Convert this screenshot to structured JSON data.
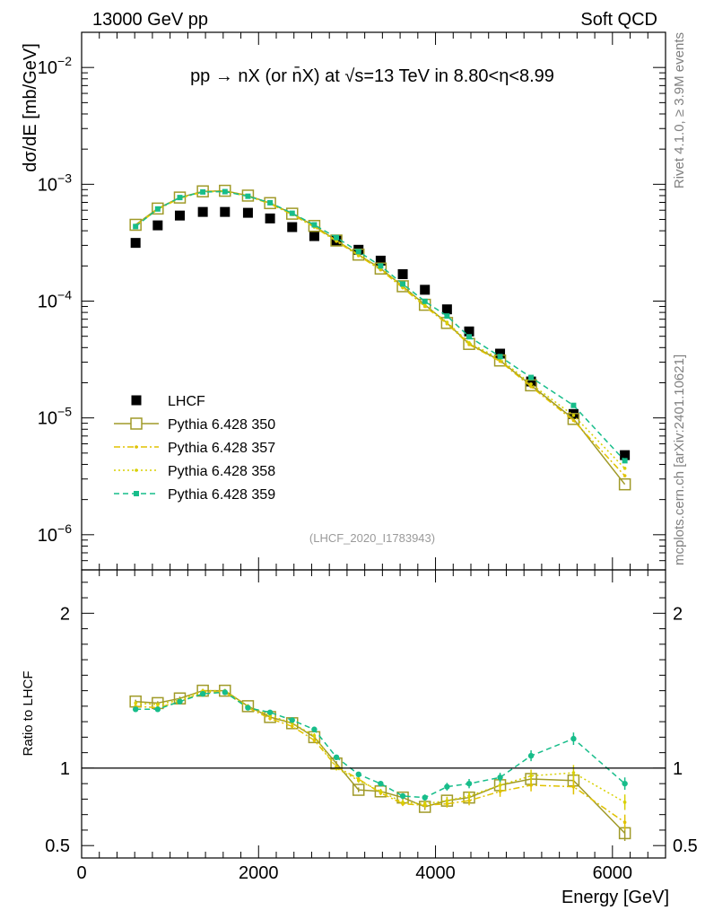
{
  "header": {
    "left": "13000 GeV pp",
    "right": "Soft QCD"
  },
  "side": {
    "rivet": "Rivet 4.1.0, ≥ 3.9M events",
    "mcplots": "mcplots.cern.ch [arXiv:2401.10621]"
  },
  "colors": {
    "lhcf": "#000000",
    "p350": "#a09a28",
    "p357": "#e0c200",
    "p358": "#d8d000",
    "p359": "#17bd8a"
  },
  "chart_data": [
    {
      "type": "scatter",
      "panel": "main",
      "title": "pp → nX (or n̄X) at √s=13 TeV in 8.80<η<8.99",
      "watermark": "(LHCF_2020_I1783943)",
      "xlabel": "Energy [GeV]",
      "ylabel": "dσ/dE [mb/GeV]",
      "yscale": "log",
      "xlim": [
        0,
        6600
      ],
      "ylim": [
        5e-07,
        0.02
      ],
      "yticks": [
        {
          "value": 0.01,
          "label": "10",
          "exp": "−2"
        },
        {
          "value": 0.001,
          "label": "10",
          "exp": "−3"
        },
        {
          "value": 0.0001,
          "label": "10",
          "exp": "−4"
        },
        {
          "value": 1e-05,
          "label": "10",
          "exp": "−5"
        },
        {
          "value": 1e-06,
          "label": "10",
          "exp": "−6"
        }
      ],
      "x": [
        610,
        860,
        1110,
        1370,
        1620,
        1880,
        2130,
        2380,
        2630,
        2880,
        3130,
        3380,
        3630,
        3880,
        4130,
        4380,
        4730,
        5080,
        5560,
        6140
      ],
      "legend_position": "lower-left",
      "series": [
        {
          "name": "LHCF",
          "key": "lhcf",
          "marker": "filled-square",
          "values": [
            0.000315,
            0.000445,
            0.00054,
            0.00058,
            0.00058,
            0.00057,
            0.00051,
            0.00043,
            0.00036,
            0.00033,
            0.000275,
            0.000222,
            0.00017,
            0.000125,
            8.5e-05,
            5.5e-05,
            3.55e-05,
            2.05e-05,
            1.08e-05,
            4.8e-06
          ]
        },
        {
          "name": "Pythia 6.428 350",
          "key": "p350",
          "marker": "open-square",
          "line": "solid",
          "values": [
            0.00045,
            0.00062,
            0.00077,
            0.00087,
            0.00088,
            0.0008,
            0.00069,
            0.00056,
            0.00044,
            0.00033,
            0.00025,
            0.00019,
            0.000134,
            9.3e-05,
            6.5e-05,
            4.3e-05,
            3.1e-05,
            1.9e-05,
            9.8e-06,
            2.7e-06
          ]
        },
        {
          "name": "Pythia 6.428 357",
          "key": "p357",
          "marker": "small-dot",
          "line": "dashdot",
          "values": [
            0.00044,
            0.00061,
            0.00076,
            0.00086,
            0.00087,
            0.00079,
            0.00068,
            0.00055,
            0.00043,
            0.000325,
            0.000245,
            0.000185,
            0.00013,
            9e-05,
            6.4e-05,
            4.25e-05,
            3.05e-05,
            1.85e-05,
            9.5e-06,
            3.2e-06
          ]
        },
        {
          "name": "Pythia 6.428 358",
          "key": "p358",
          "marker": "small-dot",
          "line": "dotted",
          "values": [
            0.000445,
            0.000615,
            0.000765,
            0.000865,
            0.000875,
            0.000795,
            0.000685,
            0.000555,
            0.000435,
            0.00033,
            0.00025,
            0.00019,
            0.000133,
            9.2e-05,
            6.6e-05,
            4.4e-05,
            3.2e-05,
            1.95e-05,
            1.05e-05,
            3.7e-06
          ]
        },
        {
          "name": "Pythia 6.428 359",
          "key": "p359",
          "marker": "filled-square-small",
          "line": "dashed",
          "values": [
            0.000435,
            0.000615,
            0.00077,
            0.00086,
            0.000865,
            0.00079,
            0.000695,
            0.000565,
            0.00045,
            0.00035,
            0.000265,
            0.0002,
            0.00014,
            9.95e-05,
            7.45e-05,
            4.95e-05,
            3.35e-05,
            2.22e-05,
            1.28e-05,
            4.3e-06
          ]
        }
      ]
    },
    {
      "type": "line",
      "panel": "ratio",
      "xlabel": "Energy [GeV]",
      "ylabel": "Ratio to LHCF",
      "xlim": [
        0,
        6600
      ],
      "ylim": [
        0.42,
        2.28
      ],
      "yticks": [
        {
          "value": 2,
          "label": "2"
        },
        {
          "value": 1,
          "label": "1"
        },
        {
          "value": 0.5,
          "label": "0.5"
        }
      ],
      "xticks": [
        {
          "value": 0,
          "label": "0"
        },
        {
          "value": 2000,
          "label": "2000"
        },
        {
          "value": 4000,
          "label": "4000"
        },
        {
          "value": 6000,
          "label": "6000"
        }
      ],
      "reference_line": 1,
      "x": [
        610,
        860,
        1110,
        1370,
        1620,
        1880,
        2130,
        2380,
        2630,
        2880,
        3130,
        3380,
        3630,
        3880,
        4130,
        4380,
        4730,
        5080,
        5560,
        6140
      ],
      "series": [
        {
          "name": "Pythia 6.428 350",
          "key": "p350",
          "values": [
            1.43,
            1.42,
            1.45,
            1.5,
            1.5,
            1.4,
            1.33,
            1.29,
            1.2,
            1.03,
            0.86,
            0.85,
            0.81,
            0.75,
            0.79,
            0.81,
            0.89,
            0.93,
            0.92,
            0.58
          ],
          "errors": [
            0.012,
            0.012,
            0.012,
            0.012,
            0.012,
            0.012,
            0.012,
            0.012,
            0.015,
            0.015,
            0.015,
            0.015,
            0.015,
            0.02,
            0.025,
            0.03,
            0.035,
            0.04,
            0.05,
            0.05
          ]
        },
        {
          "name": "Pythia 6.428 357",
          "key": "p357",
          "values": [
            1.4,
            1.39,
            1.43,
            1.49,
            1.49,
            1.39,
            1.32,
            1.27,
            1.18,
            1.01,
            0.93,
            0.84,
            0.77,
            0.76,
            0.77,
            0.79,
            0.85,
            0.89,
            0.88,
            0.65
          ],
          "errors": [
            0.012,
            0.012,
            0.012,
            0.012,
            0.012,
            0.012,
            0.012,
            0.012,
            0.015,
            0.015,
            0.015,
            0.015,
            0.015,
            0.02,
            0.025,
            0.03,
            0.035,
            0.04,
            0.05,
            0.05
          ]
        },
        {
          "name": "Pythia 6.428 358",
          "key": "p358",
          "values": [
            1.42,
            1.41,
            1.44,
            1.5,
            1.5,
            1.4,
            1.34,
            1.29,
            1.21,
            1.0,
            0.92,
            0.85,
            0.78,
            0.77,
            0.79,
            0.82,
            0.89,
            0.95,
            0.97,
            0.78
          ],
          "errors": [
            0.012,
            0.012,
            0.012,
            0.012,
            0.012,
            0.012,
            0.012,
            0.012,
            0.015,
            0.015,
            0.015,
            0.015,
            0.015,
            0.02,
            0.025,
            0.03,
            0.035,
            0.04,
            0.05,
            0.05
          ]
        },
        {
          "name": "Pythia 6.428 359",
          "key": "p359",
          "values": [
            1.38,
            1.38,
            1.43,
            1.48,
            1.49,
            1.39,
            1.36,
            1.31,
            1.25,
            1.07,
            0.96,
            0.9,
            0.82,
            0.81,
            0.88,
            0.9,
            0.94,
            1.08,
            1.19,
            0.9
          ],
          "errors": [
            0.012,
            0.012,
            0.012,
            0.012,
            0.012,
            0.012,
            0.012,
            0.012,
            0.015,
            0.015,
            0.015,
            0.015,
            0.015,
            0.02,
            0.025,
            0.03,
            0.03,
            0.035,
            0.04,
            0.04
          ]
        }
      ]
    }
  ]
}
